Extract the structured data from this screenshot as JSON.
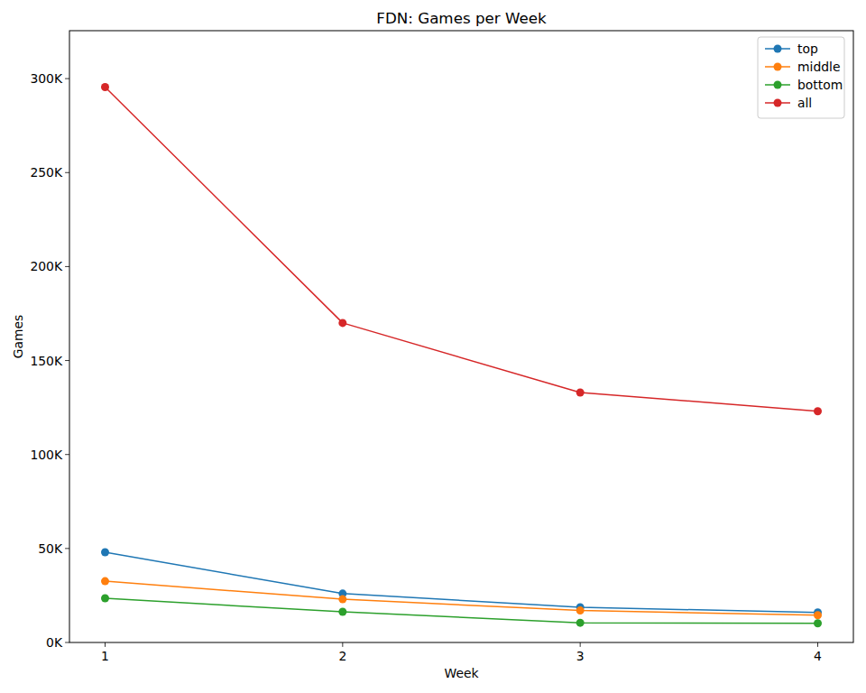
{
  "chart_data": {
    "type": "line",
    "title": "FDN: Games per Week",
    "x_label": "Week",
    "y_label": "Games",
    "x": [
      1,
      2,
      3,
      4
    ],
    "series": [
      {
        "name": "top",
        "color": "#1f77b4",
        "marker": "circle",
        "values": [
          48000,
          26000,
          18700,
          16000
        ]
      },
      {
        "name": "middle",
        "color": "#ff7f0e",
        "marker": "circle",
        "values": [
          32600,
          23000,
          17000,
          14500
        ]
      },
      {
        "name": "bottom",
        "color": "#2ca02c",
        "marker": "circle",
        "values": [
          23500,
          16300,
          10500,
          10200
        ]
      },
      {
        "name": "all",
        "color": "#d62728",
        "marker": "circle",
        "values": [
          295500,
          170000,
          133000,
          123000
        ]
      }
    ],
    "xlim": [
      0.85,
      4.15
    ],
    "ylim": [
      0,
      325500
    ],
    "xticks": [
      1,
      2,
      3,
      4
    ],
    "yticks": [
      {
        "value": 0,
        "label": "0K"
      },
      {
        "value": 50000,
        "label": "50K"
      },
      {
        "value": 100000,
        "label": "100K"
      },
      {
        "value": 150000,
        "label": "150K"
      },
      {
        "value": 200000,
        "label": "200K"
      },
      {
        "value": 250000,
        "label": "250K"
      },
      {
        "value": 300000,
        "label": "300K"
      }
    ],
    "grid": false,
    "legend": "upper right"
  }
}
